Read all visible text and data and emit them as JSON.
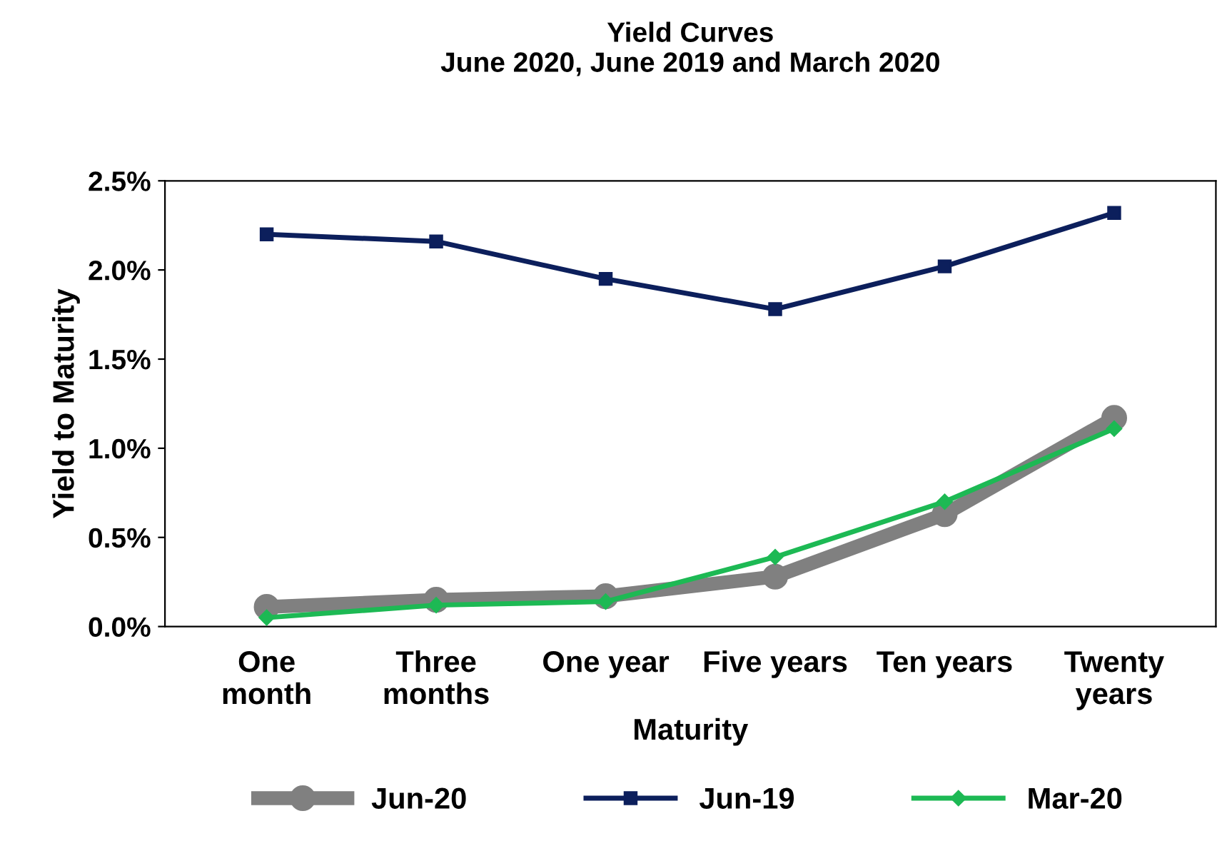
{
  "chart_data": {
    "type": "line",
    "title": "Yield Curves\nJune 2020, June 2019 and March 2020",
    "xlabel": "Maturity",
    "ylabel": "Yield to Maturity",
    "categories": [
      "One\nmonth",
      "Three\nmonths",
      "One year",
      "Five years",
      "Ten years",
      "Twenty\nyears"
    ],
    "series": [
      {
        "name": "Jun-20",
        "color": "#808080",
        "marker": "circle",
        "values": [
          0.11,
          0.15,
          0.17,
          0.28,
          0.63,
          1.17
        ]
      },
      {
        "name": "Jun-19",
        "color": "#0c1f5c",
        "marker": "square",
        "values": [
          2.2,
          2.16,
          1.95,
          1.78,
          2.02,
          2.32
        ]
      },
      {
        "name": "Mar-20",
        "color": "#1db954",
        "marker": "diamond",
        "values": [
          0.05,
          0.12,
          0.14,
          0.39,
          0.7,
          1.11
        ]
      }
    ],
    "ylim": [
      0,
      2.5
    ],
    "yticks": [
      {
        "value": 0,
        "label": "0.0%"
      },
      {
        "value": 0.5,
        "label": "0.5%"
      },
      {
        "value": 1,
        "label": "1.0%"
      },
      {
        "value": 1.5,
        "label": "1.5%"
      },
      {
        "value": 2,
        "label": "2.0%"
      },
      {
        "value": 2.5,
        "label": "2.5%"
      }
    ],
    "grid": false,
    "legend": "bottom",
    "line_style": "solid"
  }
}
